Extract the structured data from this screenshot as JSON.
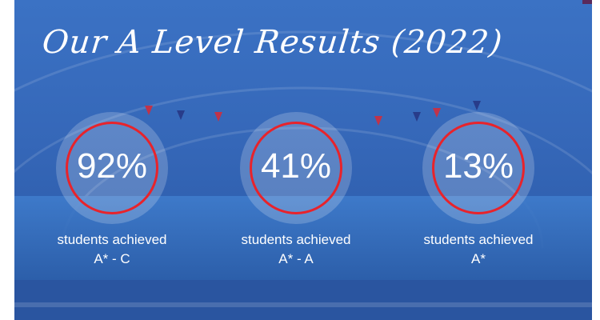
{
  "title": "Our A Level Results (2022)",
  "stats": [
    {
      "value": "92%",
      "line1": "students achieved",
      "line2": "A* - C"
    },
    {
      "value": "41%",
      "line1": "students achieved",
      "line2": "A* - A"
    },
    {
      "value": "13%",
      "line1": "students achieved",
      "line2": "A*"
    }
  ],
  "colors": {
    "background": "#3567b8",
    "ring": "#e8232b",
    "text": "#ffffff"
  }
}
